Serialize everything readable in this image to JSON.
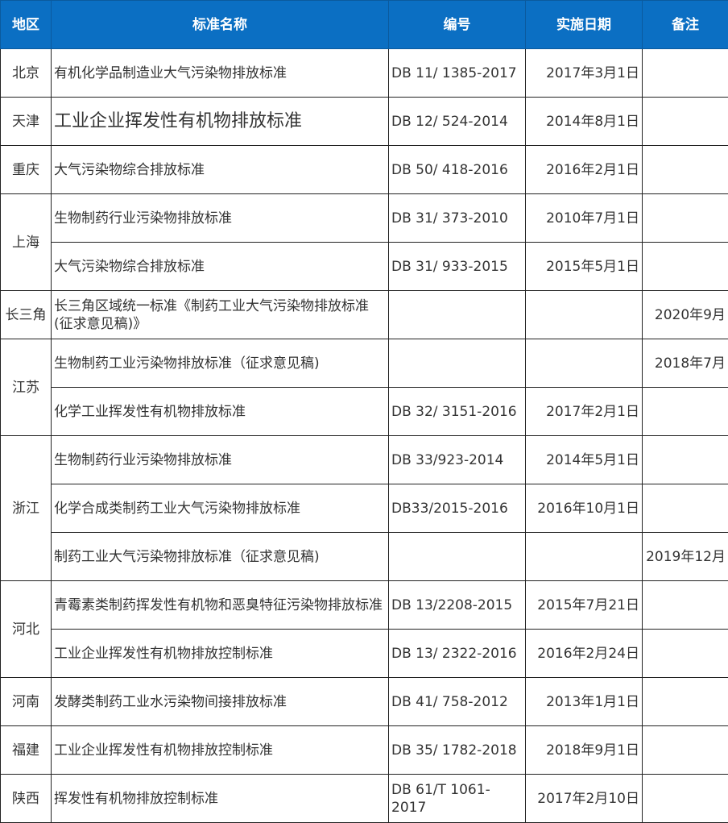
{
  "header_color": "#0b6fc3",
  "columns": [
    "地区",
    "标准名称",
    "编号",
    "实施日期",
    "备注"
  ],
  "regions": [
    {
      "region": "北京",
      "rows": [
        {
          "name": "有机化学品制造业大气污染物排放标准",
          "code": "DB 11/ 1385-2017",
          "date": "2017年3月1日",
          "note": ""
        }
      ]
    },
    {
      "region": "天津",
      "rows": [
        {
          "name": "工业企业挥发性有机物排放标准",
          "code": "DB 12/ 524-2014",
          "date": "2014年8月1日",
          "note": ""
        }
      ]
    },
    {
      "region": "重庆",
      "rows": [
        {
          "name": "大气污染物综合排放标准",
          "code": "DB 50/ 418-2016",
          "date": "2016年2月1日",
          "note": ""
        }
      ]
    },
    {
      "region": "上海",
      "rows": [
        {
          "name": "生物制药行业污染物排放标准",
          "code": "DB 31/ 373-2010",
          "date": "2010年7月1日",
          "note": ""
        },
        {
          "name": "大气污染物综合排放标准",
          "code": "DB 31/ 933-2015",
          "date": "2015年5月1日",
          "note": ""
        }
      ]
    },
    {
      "region": "长三角",
      "rows": [
        {
          "name": "长三角区域统一标准《制药工业大气污染物排放标准(征求意见稿)》",
          "code": "",
          "date": "",
          "note": "2020年9月"
        }
      ]
    },
    {
      "region": "江苏",
      "rows": [
        {
          "name": "生物制药工业污染物排放标准（征求意见稿)",
          "code": "",
          "date": "",
          "note": "2018年7月"
        },
        {
          "name": "化学工业挥发性有机物排放标准",
          "code": "DB 32/ 3151-2016",
          "date": "2017年2月1日",
          "note": ""
        }
      ]
    },
    {
      "region": "浙江",
      "rows": [
        {
          "name": "生物制药行业污染物排放标准",
          "code": "DB 33/923-2014",
          "date": "2014年5月1日",
          "note": ""
        },
        {
          "name": "化学合成类制药工业大气污染物排放标准",
          "code": "DB33/2015-2016",
          "date": "2016年10月1日",
          "note": ""
        },
        {
          "name": "制药工业大气污染物排放标准（征求意见稿)",
          "code": "",
          "date": "",
          "note": "2019年12月"
        }
      ]
    },
    {
      "region": "河北",
      "rows": [
        {
          "name": "青霉素类制药挥发性有机物和恶臭特征污染物排放标准",
          "code": "DB 13/2208-2015",
          "date": "2015年7月21日",
          "note": ""
        },
        {
          "name": "工业企业挥发性有机物排放控制标准",
          "code": "DB 13/ 2322-2016",
          "date": "2016年2月24日",
          "note": ""
        }
      ]
    },
    {
      "region": "河南",
      "rows": [
        {
          "name": "发酵类制药工业水污染物间接排放标准",
          "code": "DB 41/ 758-2012",
          "date": "2013年1月1日",
          "note": ""
        }
      ]
    },
    {
      "region": "福建",
      "rows": [
        {
          "name": "工业企业挥发性有机物排放控制标准",
          "code": "DB 35/ 1782-2018",
          "date": "2018年9月1日",
          "note": ""
        }
      ]
    },
    {
      "region": "陕西",
      "rows": [
        {
          "name": "挥发性有机物排放控制标准",
          "code": "DB 61/T 1061-2017",
          "date": "2017年2月10日",
          "note": ""
        }
      ]
    }
  ]
}
